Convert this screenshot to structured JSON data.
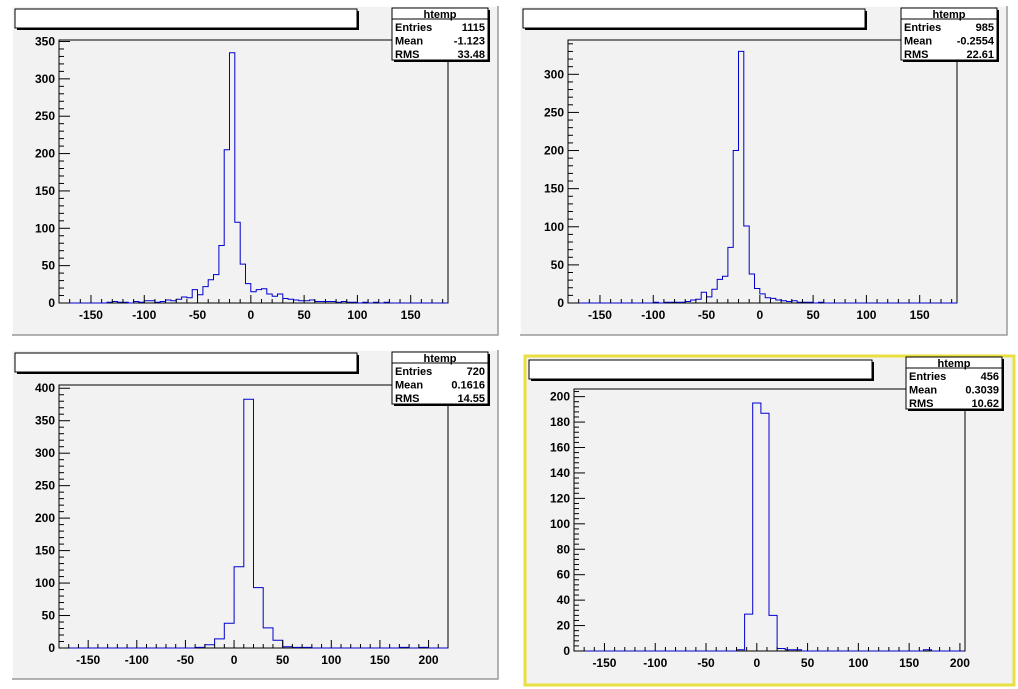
{
  "canvas": {
    "background_color": "#f2f2f2",
    "highlight_color": "#e8e040",
    "line_color": "#000000",
    "hist_color": "#0000cc"
  },
  "chart_data": [
    {
      "type": "bar",
      "title": "",
      "stats": {
        "name": "htemp",
        "entries_label": "Entries",
        "entries": "1115",
        "mean_label": "Mean",
        "mean": "-1.123",
        "rms_label": "RMS",
        "rms": "33.48"
      },
      "xlim": [
        -180,
        185
      ],
      "ylim": [
        0,
        352
      ],
      "xticks": [
        -150,
        -100,
        -50,
        0,
        50,
        100,
        150
      ],
      "yticks": [
        0,
        50,
        100,
        150,
        200,
        250,
        300,
        350
      ],
      "bin_edges_start": -180,
      "bin_width": 5,
      "values": [
        0,
        0,
        0,
        0,
        0,
        0,
        0,
        0,
        0,
        1,
        2,
        1,
        1,
        0,
        2,
        1,
        3,
        3,
        1,
        2,
        4,
        3,
        5,
        8,
        7,
        18,
        11,
        22,
        31,
        38,
        77,
        205,
        335,
        108,
        52,
        26,
        15,
        18,
        19,
        12,
        9,
        12,
        6,
        5,
        4,
        3,
        3,
        4,
        2,
        2,
        2,
        2,
        1,
        2,
        1,
        1,
        0,
        1,
        0,
        1,
        0,
        1,
        0,
        0,
        0,
        0,
        0,
        0,
        0,
        0,
        0,
        0,
        0
      ]
    },
    {
      "type": "bar",
      "title": "",
      "stats": {
        "name": "htemp",
        "entries_label": "Entries",
        "entries": "985",
        "mean_label": "Mean",
        "mean": "-0.2554",
        "rms_label": "RMS",
        "rms": "22.61"
      },
      "xlim": [
        -180,
        185
      ],
      "ylim": [
        0,
        345
      ],
      "xticks": [
        -150,
        -100,
        -50,
        0,
        50,
        100,
        150
      ],
      "yticks": [
        0,
        50,
        100,
        150,
        200,
        250,
        300
      ],
      "bin_edges_start": -180,
      "bin_width": 5,
      "values": [
        0,
        0,
        0,
        0,
        0,
        0,
        0,
        0,
        0,
        0,
        0,
        0,
        0,
        0,
        0,
        0,
        1,
        0,
        1,
        1,
        1,
        1,
        2,
        4,
        5,
        14,
        8,
        18,
        31,
        35,
        73,
        200,
        330,
        101,
        38,
        19,
        12,
        7,
        6,
        4,
        3,
        2,
        3,
        1,
        1,
        1,
        0,
        1,
        0,
        0,
        0,
        0,
        0,
        0,
        0,
        0,
        0,
        0,
        0,
        0,
        0,
        0,
        0,
        0,
        0,
        0,
        0,
        0,
        0,
        0,
        0,
        0,
        0
      ]
    },
    {
      "type": "bar",
      "title": "",
      "stats": {
        "name": "htemp",
        "entries_label": "Entries",
        "entries": "720",
        "mean_label": "Mean",
        "mean": "0.1616",
        "rms_label": "RMS",
        "rms": "14.55"
      },
      "xlim": [
        -180,
        220
      ],
      "ylim": [
        0,
        405
      ],
      "xticks": [
        -150,
        -100,
        -50,
        0,
        50,
        100,
        150,
        200
      ],
      "yticks": [
        0,
        50,
        100,
        150,
        200,
        250,
        300,
        350,
        400
      ],
      "bin_edges_start": -180,
      "bin_width": 10,
      "values": [
        0,
        0,
        0,
        0,
        0,
        0,
        0,
        0,
        0,
        0,
        0,
        0,
        0,
        0,
        1,
        5,
        14,
        38,
        125,
        383,
        93,
        31,
        12,
        2,
        1,
        1,
        0,
        0,
        0,
        0,
        0,
        0,
        0,
        0,
        0,
        1,
        0,
        1,
        0,
        0
      ]
    },
    {
      "type": "bar",
      "title": "",
      "stats": {
        "name": "htemp",
        "entries_label": "Entries",
        "entries": "456",
        "mean_label": "Mean",
        "mean": "0.3039",
        "rms_label": "RMS",
        "rms": "10.62"
      },
      "xlim": [
        -180,
        205
      ],
      "ylim": [
        0,
        206
      ],
      "xticks": [
        -150,
        -100,
        -50,
        0,
        50,
        100,
        150,
        200
      ],
      "yticks": [
        0,
        20,
        40,
        60,
        80,
        100,
        120,
        140,
        160,
        180,
        200
      ],
      "bin_edges_start": -180,
      "bin_width": 8,
      "values": [
        0,
        0,
        0,
        0,
        0,
        0,
        0,
        0,
        0,
        0,
        0,
        0,
        0,
        0,
        0,
        0,
        0,
        0,
        0,
        0,
        1,
        29,
        195,
        187,
        28,
        2,
        1,
        1,
        0,
        0,
        0,
        0,
        0,
        0,
        0,
        0,
        0,
        0,
        0,
        0,
        0,
        0,
        0,
        1,
        0,
        0,
        0,
        0
      ]
    }
  ]
}
